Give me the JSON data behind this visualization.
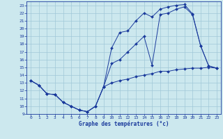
{
  "xlabel": "Graphe des températures (°c)",
  "bg_color": "#cce8ee",
  "line_color": "#1a3a9c",
  "grid_color": "#a0c8d8",
  "xlim": [
    -0.5,
    23.5
  ],
  "ylim": [
    9,
    23.5
  ],
  "xticks": [
    0,
    1,
    2,
    3,
    4,
    5,
    6,
    7,
    8,
    9,
    10,
    11,
    12,
    13,
    14,
    15,
    16,
    17,
    18,
    19,
    20,
    21,
    22,
    23
  ],
  "yticks": [
    9,
    10,
    11,
    12,
    13,
    14,
    15,
    16,
    17,
    18,
    19,
    20,
    21,
    22,
    23
  ],
  "series": [
    {
      "x": [
        0,
        1,
        2,
        3,
        4,
        5,
        6,
        7,
        8,
        9,
        10,
        11,
        12,
        13,
        14,
        15,
        16,
        17,
        18,
        19,
        20,
        21,
        22,
        23
      ],
      "y": [
        13.3,
        12.7,
        11.6,
        11.5,
        10.5,
        10.0,
        9.5,
        9.3,
        10.0,
        12.5,
        13.0,
        13.3,
        13.5,
        13.8,
        14.0,
        14.2,
        14.5,
        14.5,
        14.7,
        14.8,
        14.9,
        14.9,
        15.0,
        14.9
      ]
    },
    {
      "x": [
        0,
        1,
        2,
        3,
        4,
        5,
        6,
        7,
        8,
        9,
        10,
        11,
        12,
        13,
        14,
        15,
        16,
        17,
        18,
        19,
        20,
        21,
        22,
        23
      ],
      "y": [
        13.3,
        12.7,
        11.6,
        11.5,
        10.5,
        10.0,
        9.5,
        9.3,
        10.0,
        12.5,
        17.5,
        19.5,
        19.7,
        21.0,
        22.0,
        21.5,
        22.5,
        22.8,
        23.0,
        23.1,
        21.9,
        17.8,
        15.2,
        14.9
      ]
    },
    {
      "x": [
        0,
        1,
        2,
        3,
        4,
        5,
        6,
        7,
        8,
        9,
        10,
        11,
        12,
        13,
        14,
        15,
        16,
        17,
        18,
        19,
        20,
        21,
        22,
        23
      ],
      "y": [
        13.3,
        12.7,
        11.6,
        11.5,
        10.5,
        10.0,
        9.5,
        9.3,
        10.0,
        12.5,
        15.5,
        16.0,
        17.0,
        18.0,
        19.0,
        15.3,
        21.8,
        22.0,
        22.5,
        22.8,
        21.8,
        17.8,
        15.2,
        14.9
      ]
    }
  ]
}
